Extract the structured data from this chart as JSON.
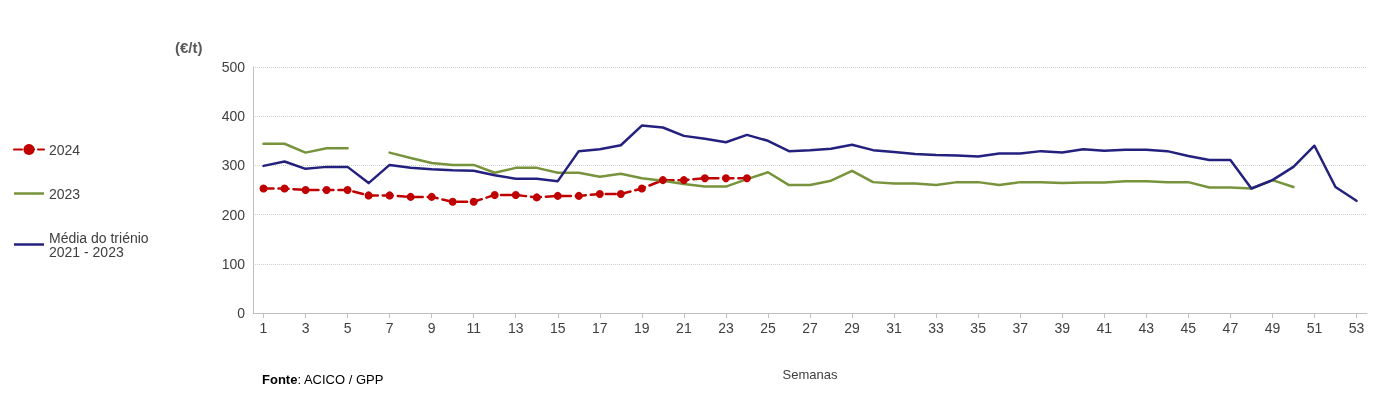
{
  "chart_data": {
    "type": "line",
    "ylabel": "(€/t)",
    "xlabel": "Semanas",
    "annotations": [
      "Fonte: ACICO / GPP"
    ],
    "x": [
      1,
      2,
      3,
      4,
      5,
      6,
      7,
      8,
      9,
      10,
      11,
      12,
      13,
      14,
      15,
      16,
      17,
      18,
      19,
      20,
      21,
      22,
      23,
      24,
      25,
      26,
      27,
      28,
      29,
      30,
      31,
      32,
      33,
      34,
      35,
      36,
      37,
      38,
      39,
      40,
      41,
      42,
      43,
      44,
      45,
      46,
      47,
      48,
      49,
      50,
      51,
      52,
      53
    ],
    "xlim": [
      0.5,
      53.5
    ],
    "xticks": [
      1,
      3,
      5,
      7,
      9,
      11,
      13,
      15,
      17,
      19,
      21,
      23,
      25,
      27,
      29,
      31,
      33,
      35,
      37,
      39,
      41,
      43,
      45,
      47,
      49,
      51,
      53
    ],
    "series": [
      {
        "name": "2024",
        "color": "#c00000",
        "marker": "circle",
        "line_style": "dashed",
        "values": [
          253,
          253,
          250,
          250,
          250,
          239,
          239,
          236,
          236,
          226,
          226,
          240,
          240,
          235,
          238,
          238,
          242,
          242,
          253,
          270,
          270,
          274,
          274,
          274,
          null,
          null,
          null,
          null,
          null,
          null,
          null,
          null,
          null,
          null,
          null,
          null,
          null,
          null,
          null,
          null,
          null,
          null,
          null,
          null,
          null,
          null,
          null,
          null,
          null,
          null,
          null,
          null,
          null
        ]
      },
      {
        "name": "2023",
        "color": "#77933c",
        "marker": "none",
        "line_style": "solid",
        "values": [
          344,
          344,
          326,
          335,
          335,
          null,
          326,
          315,
          305,
          301,
          301,
          285,
          295,
          295,
          285,
          285,
          277,
          283,
          274,
          269,
          262,
          257,
          257,
          272,
          286,
          260,
          260,
          269,
          289,
          266,
          263,
          263,
          260,
          266,
          266,
          260,
          266,
          266,
          264,
          265,
          265,
          268,
          268,
          266,
          266,
          255,
          255,
          253,
          270,
          256,
          null,
          null,
          null
        ]
      },
      {
        "name": "Média do triénio 2021 - 2023",
        "color": "#23207e",
        "marker": "none",
        "line_style": "solid",
        "values": [
          299,
          308,
          293,
          297,
          297,
          264,
          301,
          295,
          292,
          290,
          289,
          280,
          273,
          273,
          268,
          329,
          333,
          341,
          381,
          377,
          360,
          354,
          347,
          362,
          350,
          329,
          331,
          334,
          342,
          331,
          327,
          323,
          321,
          320,
          318,
          324,
          324,
          329,
          326,
          333,
          330,
          332,
          332,
          329,
          319,
          311,
          311,
          253,
          270,
          297,
          340,
          256,
          228
        ]
      }
    ],
    "ylim": [
      0,
      500
    ],
    "yticks": [
      0,
      100,
      200,
      300,
      400,
      500
    ],
    "grid": "y",
    "legend": "left"
  }
}
